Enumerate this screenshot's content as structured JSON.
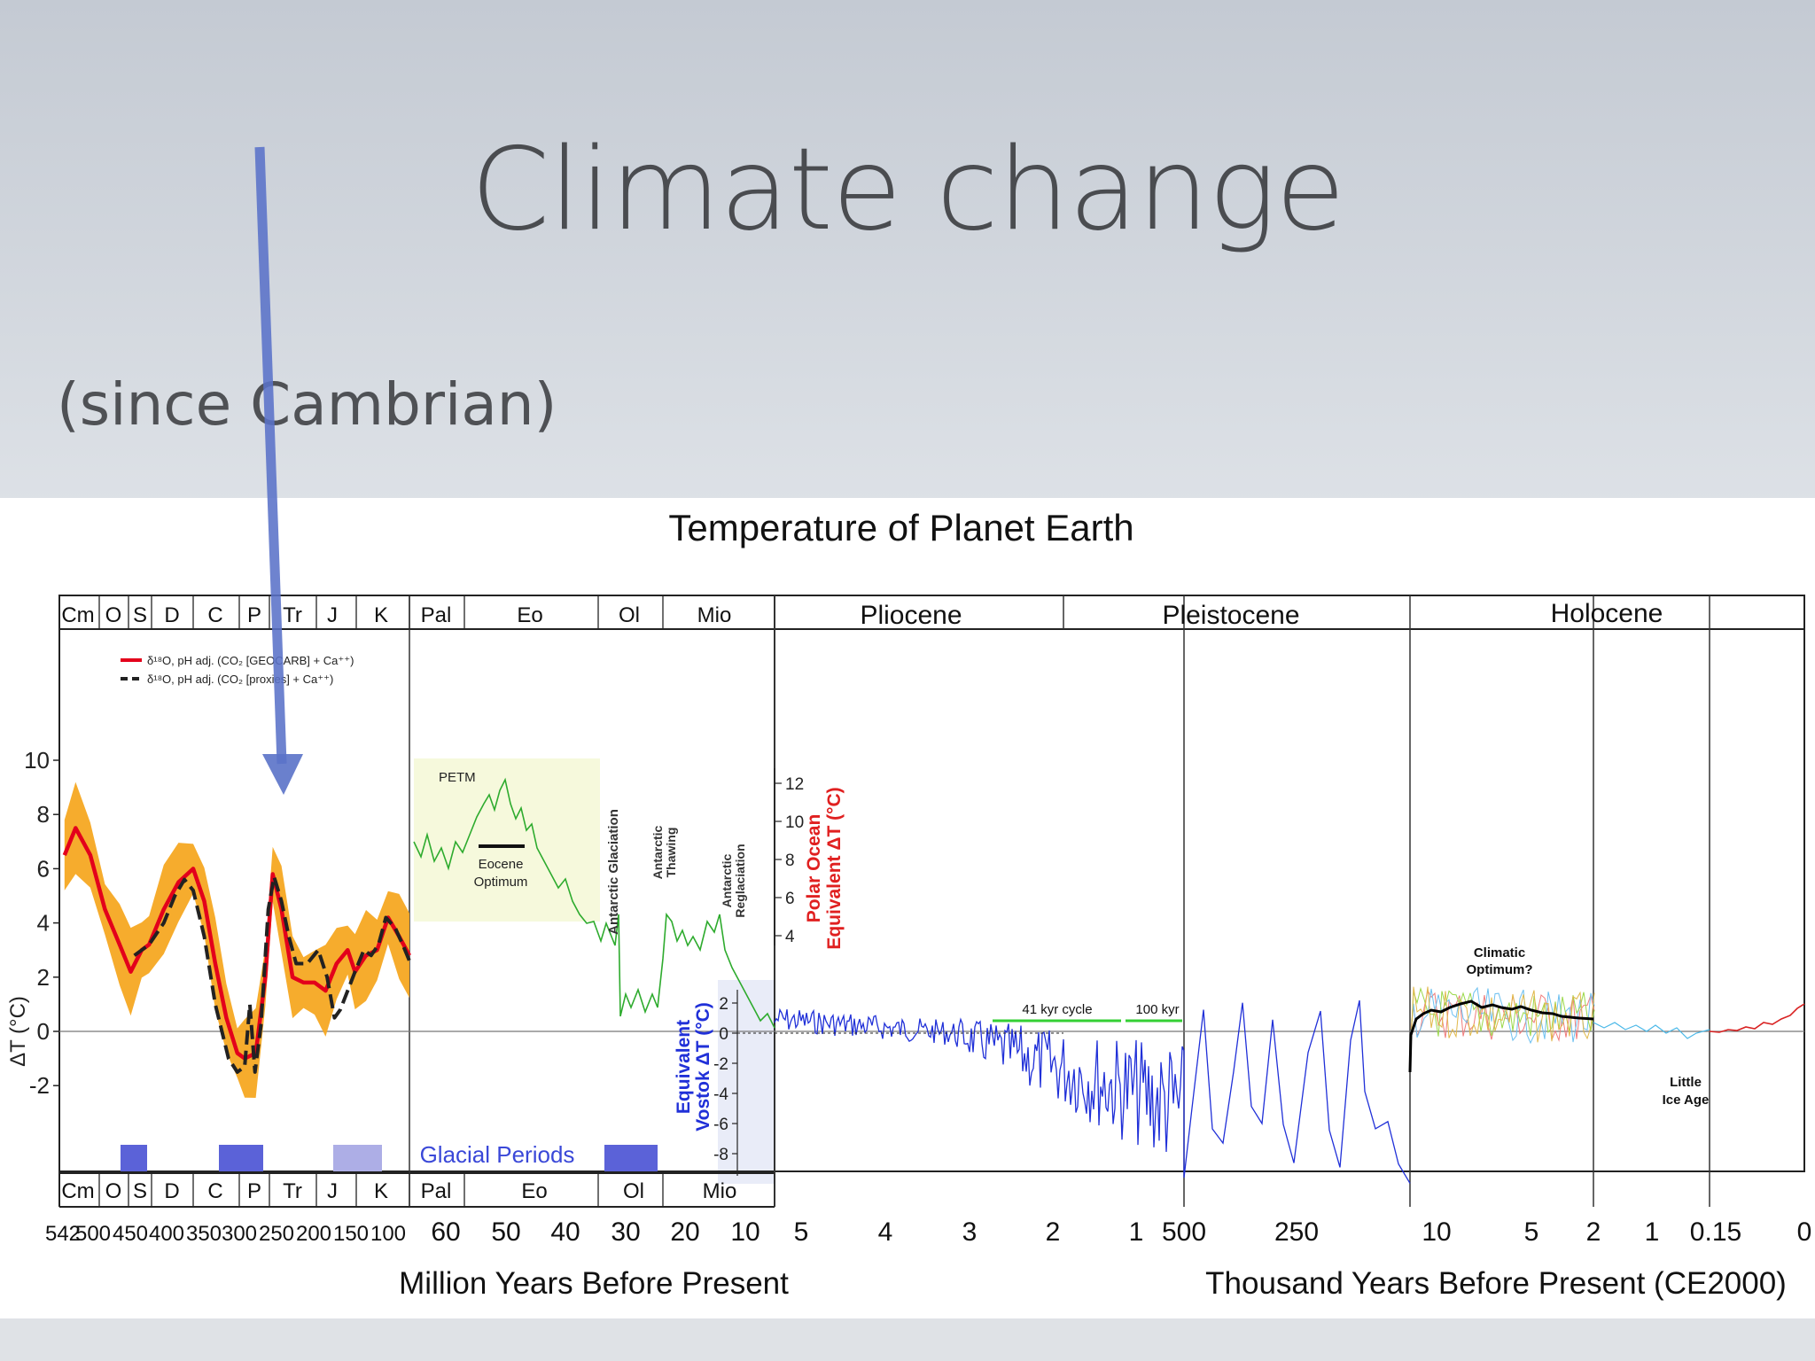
{
  "slide": {
    "title": "Climate change",
    "subtitle": "(since Cambrian)",
    "arrow_color": "#5a72c8"
  },
  "chart_data": {
    "type": "line",
    "title": "Temperature of Planet Earth",
    "ylabel": "ΔT (°C)",
    "ylim": [
      -4,
      10
    ],
    "yticks": [
      "10",
      "8",
      "6",
      "4",
      "2",
      "0",
      "-2"
    ],
    "legend": [
      {
        "label": "δ¹⁸O, pH adj. (CO₂ [GEOCARB] + Ca⁺⁺)",
        "color": "#e3001b",
        "style": "solid"
      },
      {
        "label": "δ¹⁸O, pH adj. (CO₂ [proxies] + Ca⁺⁺)",
        "color": "#222222",
        "style": "dashed"
      }
    ],
    "periods_top": [
      "Cm",
      "O",
      "S",
      "D",
      "C",
      "P",
      "Tr",
      "J",
      "K",
      "Pal",
      "Eo",
      "Ol",
      "Mio"
    ],
    "periods_bottom": [
      "Cm",
      "O",
      "S",
      "D",
      "C",
      "P",
      "Tr",
      "J",
      "K",
      "Pal",
      "Eo",
      "Ol",
      "Mio"
    ],
    "epochs": [
      "Pliocene",
      "Pleistocene",
      "Holocene"
    ],
    "x_tick_labels_panel1": [
      "542",
      "500",
      "450",
      "400",
      "350",
      "300",
      "250",
      "200",
      "150",
      "100"
    ],
    "x_tick_labels_panel2": [
      "60",
      "50",
      "40",
      "30",
      "20",
      "10"
    ],
    "x_tick_labels_panel3": [
      "5",
      "4",
      "3",
      "2",
      "1"
    ],
    "x_tick_labels_panel4": [
      "500",
      "250"
    ],
    "x_tick_labels_panel5": [
      "10",
      "5",
      "2"
    ],
    "x_tick_labels_panel6": [
      "1",
      "0.15",
      "0"
    ],
    "xlabel_left": "Million Years Before Present",
    "xlabel_right": "Thousand Years Before Present (CE2000)",
    "annotations": {
      "petm": "PETM",
      "eocene_optimum_1": "Eocene",
      "eocene_optimum_2": "Optimum",
      "antarctic_glaciation": "Antarctic Glaciation",
      "antarctic_thawing_1": "Antarctic",
      "antarctic_thawing_2": "Thawing",
      "antarctic_reglaciation_1": "Antarctic",
      "antarctic_reglaciation_2": "Reglaciation",
      "polar_axis_1": "Polar Ocean",
      "polar_axis_2": "Equivalent ΔT (°C)",
      "vostok_axis_1": "Equivalent",
      "vostok_axis_2": "Vostok ΔT (°C)",
      "glacial_periods": "Glacial Periods",
      "kyr41": "41 kyr cycle",
      "kyr100": "100 kyr",
      "climatic_optimum_1": "Climatic",
      "climatic_optimum_2": "Optimum?",
      "little_ice_age_1": "Little",
      "little_ice_age_2": "Ice Age"
    },
    "polar_ticks": [
      "12",
      "10",
      "8",
      "6",
      "4"
    ],
    "vostok_ticks": [
      "2",
      "0",
      "-2",
      "-4",
      "-6",
      "-8"
    ],
    "series": [
      {
        "name": "δ¹⁸O, pH adj. (CO₂ [GEOCARB] + Ca⁺⁺)",
        "x": [
          535,
          520,
          500,
          480,
          460,
          445,
          430,
          420,
          400,
          380,
          360,
          345,
          330,
          315,
          300,
          290,
          275,
          262,
          252,
          240,
          225,
          210,
          195,
          180,
          165,
          150,
          140,
          125,
          110,
          95,
          80,
          66
        ],
        "values": [
          6.5,
          7.5,
          6.5,
          4.5,
          3.2,
          2.2,
          3.0,
          3.2,
          4.5,
          5.5,
          6.0,
          4.8,
          2.5,
          0.5,
          -0.8,
          -1.0,
          -0.8,
          2.0,
          5.8,
          4.5,
          2.0,
          1.8,
          1.8,
          1.5,
          2.5,
          3.0,
          2.2,
          2.8,
          3.0,
          4.2,
          3.5,
          2.8
        ]
      },
      {
        "name": "δ¹⁸O, pH adj. (CO₂ [proxies] + Ca⁺⁺)",
        "x": [
          440,
          420,
          400,
          385,
          372,
          360,
          345,
          330,
          312,
          300,
          290,
          283,
          276,
          268,
          258,
          250,
          240,
          230,
          220,
          205,
          190,
          178,
          168,
          160,
          150,
          140,
          128,
          118,
          108,
          98,
          85,
          72,
          66
        ],
        "values": [
          2.8,
          3.2,
          4.0,
          5.0,
          5.6,
          5.2,
          3.5,
          1.0,
          -1.0,
          -1.5,
          -1.3,
          1.0,
          -1.5,
          0.2,
          4.5,
          5.7,
          4.8,
          3.5,
          2.5,
          2.5,
          3.0,
          2.0,
          0.5,
          0.8,
          1.5,
          2.2,
          3.0,
          2.8,
          3.2,
          4.2,
          3.8,
          3.0,
          2.6
        ]
      }
    ]
  }
}
